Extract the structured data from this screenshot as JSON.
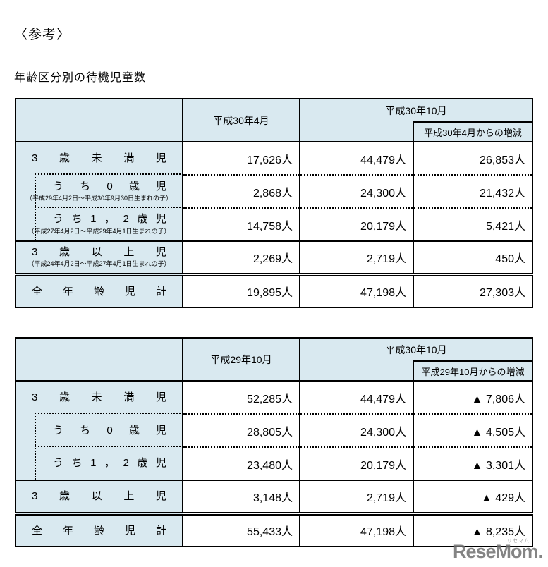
{
  "page": {
    "note": "〈参考〉",
    "title": "年齢区分別の待機児童数"
  },
  "colors": {
    "header_bg": "#d9e9f0",
    "border": "#000000"
  },
  "t1": {
    "h_col2": "平成30年4月",
    "h_col34": "平成30年10月",
    "h_sub": "平成30年4月からの増減",
    "rows": [
      {
        "label": "3歳未満児",
        "sub": "",
        "c1": "17,626人",
        "c2": "44,479人",
        "c3": "26,853人"
      },
      {
        "label": "うち0歳児",
        "sub": "（平成29年4月2日～平成30年9月30日生まれの子）",
        "c1": "2,868人",
        "c2": "24,300人",
        "c3": "21,432人"
      },
      {
        "label": "うち1，2歳児",
        "sub": "（平成27年4月2日～平成29年4月1日生まれの子）",
        "c1": "14,758人",
        "c2": "20,179人",
        "c3": "5,421人"
      },
      {
        "label": "3歳以上児",
        "sub": "（平成24年4月2日～平成27年4月1日生まれの子）",
        "c1": "2,269人",
        "c2": "2,719人",
        "c3": "450人"
      },
      {
        "label": "全年齢児計",
        "sub": "",
        "c1": "19,895人",
        "c2": "47,198人",
        "c3": "27,303人"
      }
    ]
  },
  "t2": {
    "h_col2": "平成29年10月",
    "h_col34": "平成30年10月",
    "h_sub": "平成29年10月からの増減",
    "rows": [
      {
        "label": "3歳未満児",
        "sub": "",
        "c1": "52,285人",
        "c2": "44,479人",
        "c3": "▲ 7,806人"
      },
      {
        "label": "うち0歳児",
        "sub": "",
        "c1": "28,805人",
        "c2": "24,300人",
        "c3": "▲ 4,505人"
      },
      {
        "label": "うち1，2歳児",
        "sub": "",
        "c1": "23,480人",
        "c2": "20,179人",
        "c3": "▲ 3,301人"
      },
      {
        "label": "3歳以上児",
        "sub": "",
        "c1": "3,148人",
        "c2": "2,719人",
        "c3": "▲ 429人"
      },
      {
        "label": "全年齢児計",
        "sub": "",
        "c1": "55,433人",
        "c2": "47,198人",
        "c3": "▲ 8,235人"
      }
    ]
  },
  "watermark": {
    "text": "ReseMom.",
    "ruby": "リセマム"
  }
}
